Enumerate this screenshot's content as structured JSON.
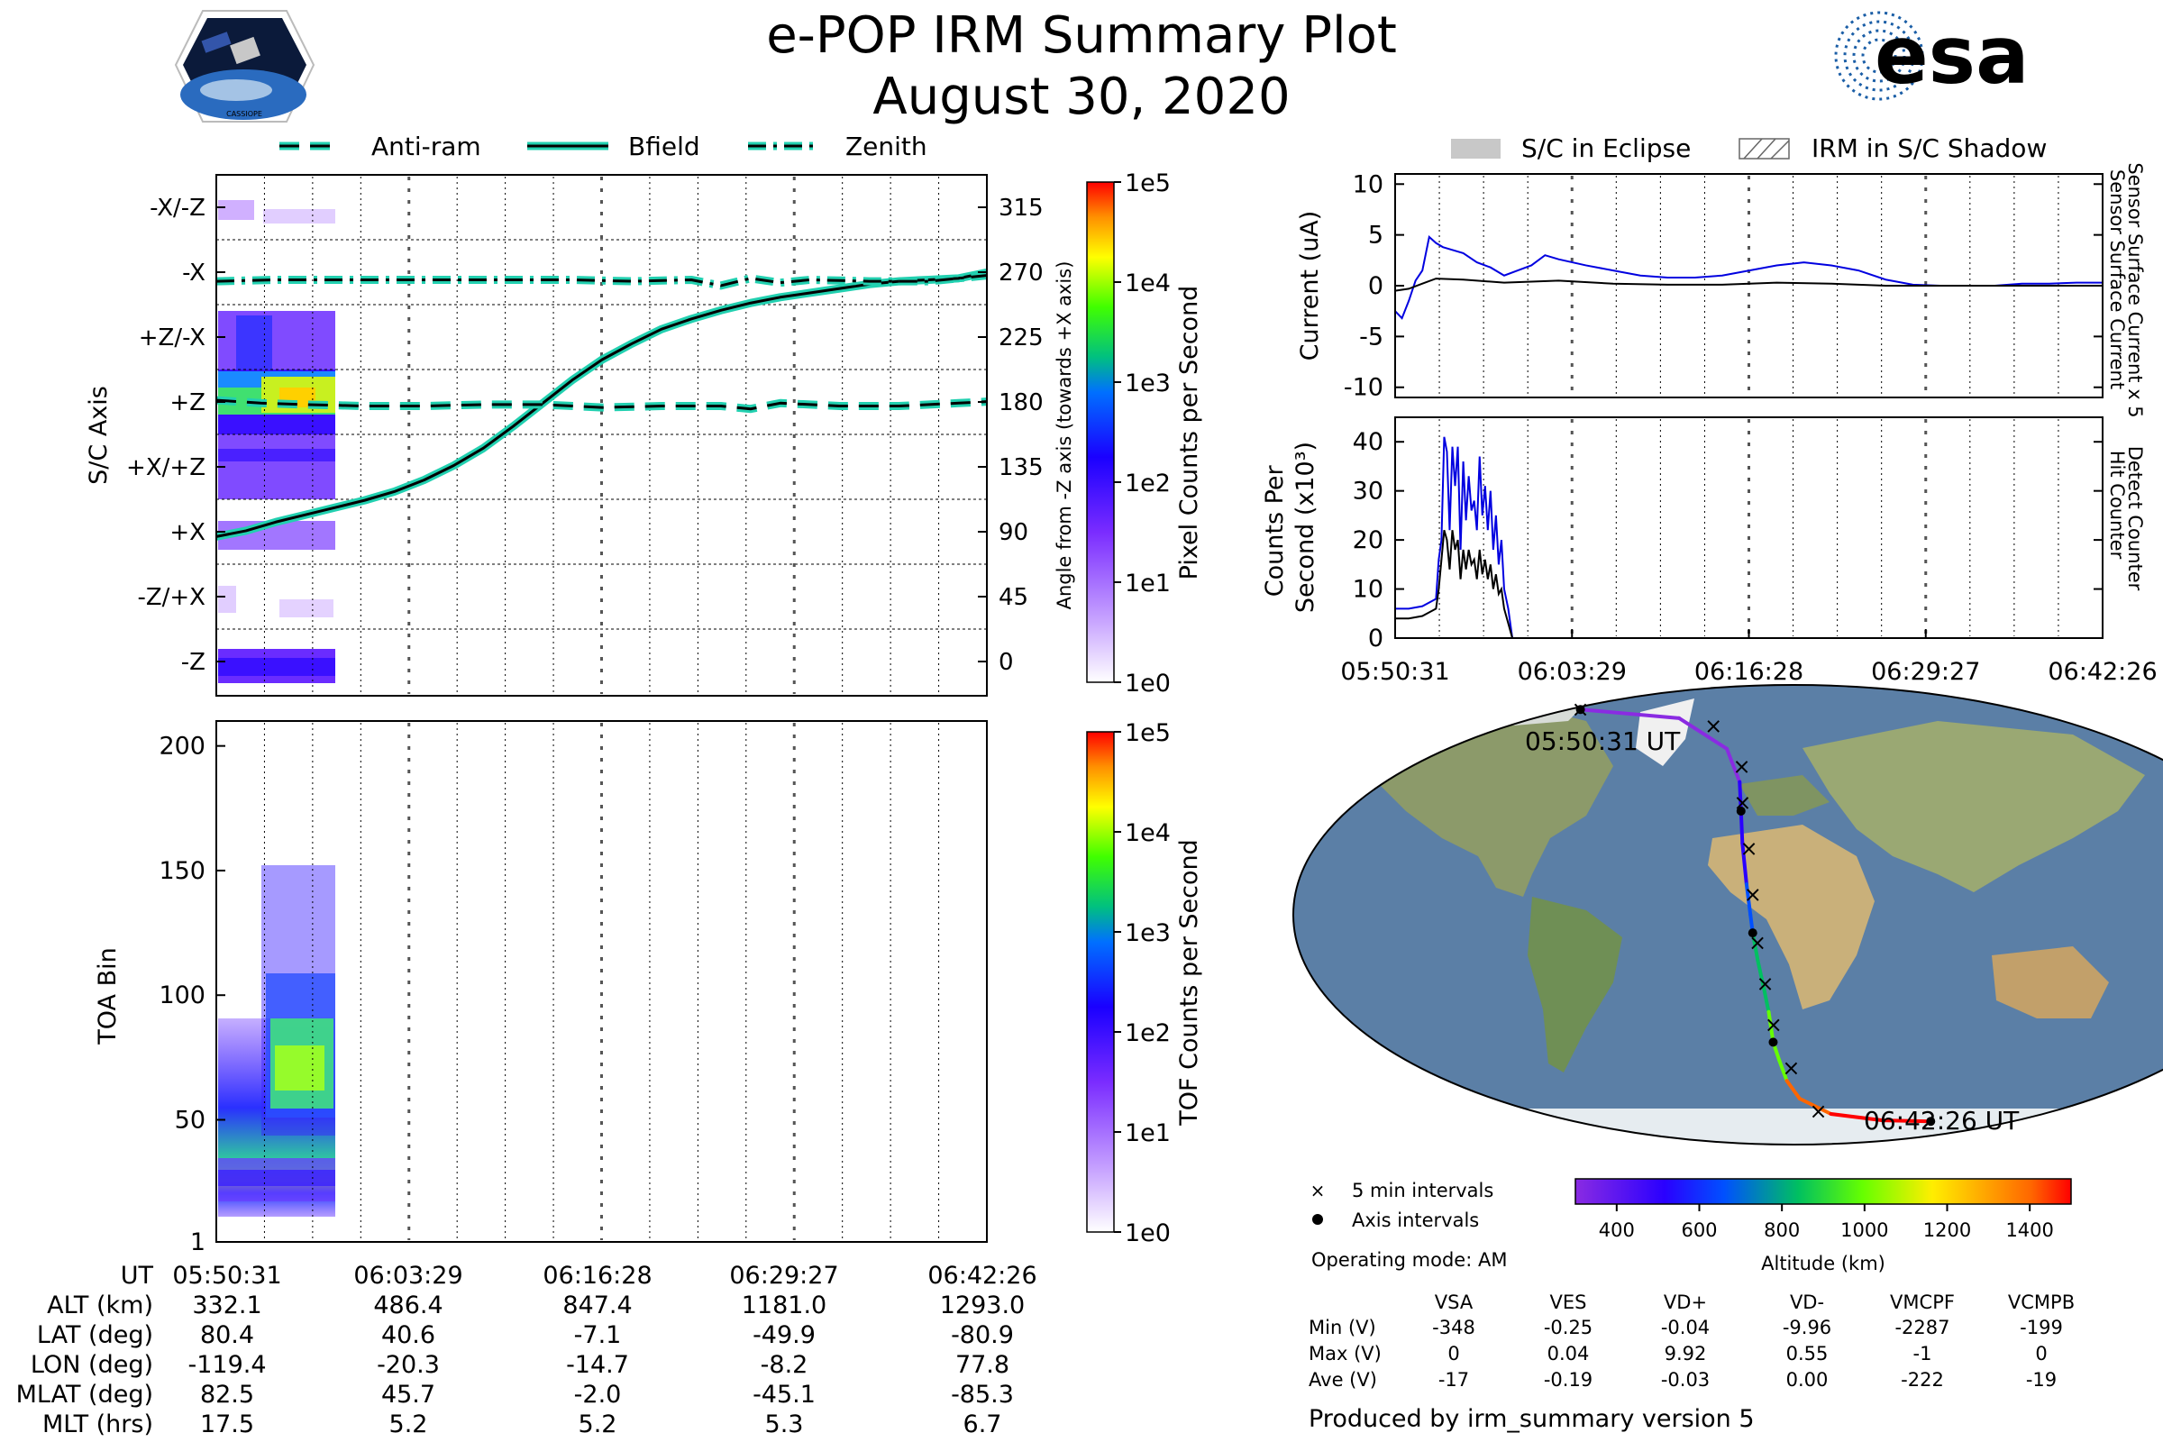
{
  "header": {
    "title": "e-POP IRM Summary Plot",
    "date": "August 30, 2020",
    "left_logo_text": "CASSIOPE",
    "right_logo_text": "esa"
  },
  "legend_left": {
    "antiram": "Anti-ram",
    "bfield": "Bfield",
    "zenith": "Zenith"
  },
  "legend_right": {
    "eclipse": "S/C in Eclipse",
    "shadow": "IRM in S/C Shadow"
  },
  "colors": {
    "line_accent": "#22d0b0",
    "current_blue": "#0000e0",
    "path_colormap": [
      "#8a2be2",
      "#2a00ff",
      "#0050ff",
      "#00c060",
      "#66ff00",
      "#ffee00",
      "#ffaa00",
      "#ff6600",
      "#ff0000"
    ]
  },
  "chart_data": [
    {
      "id": "sc-axis-panel",
      "type": "heatmap",
      "ylabel": "S/C Axis",
      "categories": [
        "-X/-Z",
        "-X",
        "+Z/-X",
        "+Z",
        "+X/+Z",
        "+X",
        "-Z/+X",
        "-Z"
      ],
      "right_axis": {
        "label": "Angle from -Z axis (towards +X axis)",
        "ticks": [
          "315",
          "270",
          "225",
          "180",
          "135",
          "90",
          "45",
          "0"
        ]
      },
      "colorbar": {
        "label": "Pixel Counts per Second",
        "ticks": [
          "1e5",
          "1e4",
          "1e3",
          "1e2",
          "1e1",
          "1e0"
        ]
      },
      "series": [
        {
          "name": "Bfield",
          "x": [
            0,
            2,
            4,
            6,
            8,
            10,
            12,
            14,
            16,
            18,
            20,
            22,
            24,
            26,
            28,
            30,
            32,
            34,
            36,
            38,
            40,
            42,
            44,
            46,
            48,
            50,
            51.9
          ],
          "values": [
            88,
            92,
            98,
            103,
            108,
            113,
            119,
            127,
            137,
            149,
            164,
            180,
            196,
            210,
            221,
            231,
            238,
            244,
            249,
            253,
            256,
            259,
            262,
            264,
            265,
            266,
            270
          ]
        },
        {
          "name": "Anti-ram",
          "x": [
            0,
            3,
            6,
            10,
            14,
            18,
            22,
            26,
            30,
            34,
            36,
            38,
            42,
            46,
            50,
            51.9
          ],
          "values": [
            182,
            180,
            179,
            178,
            178,
            179,
            179,
            177,
            178,
            178,
            176,
            180,
            178,
            178,
            180,
            181
          ]
        },
        {
          "name": "Zenith",
          "x": [
            0,
            4,
            8,
            12,
            16,
            20,
            24,
            28,
            32,
            34,
            36,
            38,
            40,
            44,
            48,
            51.9
          ],
          "values": [
            264,
            265,
            265,
            265,
            265,
            265,
            265,
            264,
            265,
            261,
            266,
            263,
            265,
            264,
            264,
            268
          ]
        }
      ]
    },
    {
      "id": "toa-panel",
      "type": "heatmap",
      "ylabel": "TOA Bin",
      "yticks": [
        "200",
        "150",
        "100",
        "50",
        "1"
      ],
      "ylim": [
        1,
        210
      ],
      "colorbar": {
        "label": "TOF Counts per Second",
        "ticks": [
          "1e5",
          "1e4",
          "1e3",
          "1e2",
          "1e1",
          "1e0"
        ]
      }
    },
    {
      "id": "current-panel",
      "type": "line",
      "ylabel": "Current (uA)",
      "yticks": [
        "10",
        "5",
        "0",
        "-5",
        "-10"
      ],
      "ylim": [
        -11,
        11
      ],
      "right_labels": [
        "Sensor Surface Current x 5",
        "Sensor Surface Current"
      ],
      "series": [
        {
          "name": "Sensor Surface Current x 5",
          "x": [
            0,
            0.5,
            1,
            1.5,
            2,
            2.5,
            3,
            3.5,
            4,
            5,
            6,
            7,
            8,
            9,
            10,
            11,
            12,
            14,
            16,
            18,
            20,
            22,
            24,
            26,
            28,
            30,
            32,
            34,
            36,
            38,
            40,
            42,
            44,
            46,
            48,
            50,
            51.9
          ],
          "values": [
            -2.5,
            -3.2,
            -1.5,
            0.5,
            1.5,
            4.8,
            4.2,
            3.8,
            3.6,
            3.2,
            2.3,
            1.8,
            1.0,
            1.5,
            2.0,
            3.0,
            2.6,
            2.0,
            1.5,
            1.0,
            0.8,
            0.8,
            1.0,
            1.5,
            2.0,
            2.3,
            2.0,
            1.5,
            0.6,
            0.1,
            0.0,
            0.0,
            0.0,
            0.2,
            0.2,
            0.3,
            0.3
          ]
        },
        {
          "name": "Sensor Surface Current",
          "x": [
            0,
            1,
            2,
            3,
            5,
            8,
            12,
            16,
            20,
            24,
            28,
            32,
            36,
            40,
            44,
            48,
            51.9
          ],
          "values": [
            -0.5,
            -0.3,
            0.2,
            0.7,
            0.6,
            0.3,
            0.5,
            0.2,
            0.1,
            0.1,
            0.3,
            0.2,
            0.0,
            0.0,
            0.0,
            0.0,
            0.0
          ]
        }
      ]
    },
    {
      "id": "counts-panel",
      "type": "line",
      "ylabel": "Counts Per Second (x10³)",
      "yticks": [
        "40",
        "30",
        "20",
        "10",
        "0"
      ],
      "ylim": [
        0,
        45
      ],
      "right_labels": [
        "Detect Counter",
        "Hit Counter"
      ],
      "xticks": [
        "05:50:31",
        "06:03:29",
        "06:16:28",
        "06:29:27",
        "06:42:26"
      ],
      "series": [
        {
          "name": "Detect Counter",
          "x": [
            0,
            1,
            2,
            3,
            3.2,
            3.4,
            3.6,
            3.8,
            4.0,
            4.2,
            4.4,
            4.6,
            4.8,
            5.0,
            5.2,
            5.4,
            5.6,
            5.8,
            6.0,
            6.2,
            6.4,
            6.6,
            6.8,
            7.0,
            7.2,
            7.4,
            7.6,
            7.8,
            8.0,
            8.3,
            8.6,
            9,
            20,
            40,
            51.9
          ],
          "values": [
            6,
            6,
            6.5,
            8,
            16,
            20,
            41,
            38,
            22,
            39,
            31,
            39,
            18,
            36,
            24,
            33,
            26,
            28,
            22,
            37,
            25,
            31,
            22,
            30,
            18,
            25,
            15,
            20,
            10,
            6,
            0,
            0,
            0,
            0,
            0
          ]
        },
        {
          "name": "Hit Counter",
          "x": [
            0,
            1,
            2,
            3,
            3.2,
            3.4,
            3.6,
            3.8,
            4.0,
            4.2,
            4.4,
            4.6,
            4.8,
            5.0,
            5.2,
            5.4,
            5.6,
            5.8,
            6.0,
            6.2,
            6.4,
            6.6,
            6.8,
            7.0,
            7.2,
            7.4,
            7.6,
            7.8,
            8.0,
            8.3,
            8.6,
            9,
            20,
            40,
            51.9
          ],
          "values": [
            4,
            4,
            4.5,
            6,
            10,
            16,
            22,
            20,
            14,
            22,
            18,
            20,
            12,
            18,
            14,
            18,
            15,
            16,
            12,
            18,
            13,
            16,
            12,
            15,
            10,
            13,
            9,
            10,
            6,
            3,
            0,
            0,
            0,
            0,
            0
          ]
        }
      ]
    },
    {
      "id": "ground-track-map",
      "type": "scatter",
      "lon": [
        -119.4,
        -60,
        -30,
        -22,
        -20.3,
        -19,
        -17,
        -15.5,
        -14.7,
        -13,
        -11,
        -9.5,
        -8.2,
        -6,
        -3,
        3,
        20,
        50,
        77.8
      ],
      "lat": [
        80.4,
        77,
        65,
        52,
        40.6,
        28,
        12,
        0,
        -7.1,
        -18,
        -29,
        -38,
        -49.9,
        -57,
        -65,
        -72,
        -78,
        -80.5,
        -80.9
      ],
      "five_min_marks_lon": [
        -119.4,
        -40,
        -22,
        -20,
        -16.5,
        -14.7,
        -13,
        -10.5,
        -7.8,
        -1,
        13
      ],
      "five_min_marks_lat": [
        80.4,
        74,
        58,
        44,
        26,
        8,
        -11,
        -27,
        -43,
        -60,
        -77
      ],
      "axis_marks_lon": [
        -119.4,
        -20.3,
        -14.7,
        -8.2,
        77.8
      ],
      "axis_marks_lat": [
        80.4,
        40.6,
        -7.1,
        -49.9,
        -80.9
      ],
      "start_label": "05:50:31 UT",
      "end_label": "06:42:26 UT",
      "legend": {
        "five_min": "5 min intervals",
        "axis": "Axis intervals"
      },
      "altitude_colorbar": {
        "label": "Altitude (km)",
        "ticks": [
          "400",
          "600",
          "800",
          "1000",
          "1200",
          "1400"
        ],
        "range": [
          300,
          1500
        ]
      }
    }
  ],
  "left_table": {
    "row_labels": [
      "UT",
      "ALT (km)",
      "LAT (deg)",
      "LON (deg)",
      "MLAT (deg)",
      "MLT (hrs)"
    ],
    "columns": [
      [
        "05:50:31",
        "332.1",
        "80.4",
        "-119.4",
        "82.5",
        "17.5"
      ],
      [
        "06:03:29",
        "486.4",
        "40.6",
        "-20.3",
        "45.7",
        "5.2"
      ],
      [
        "06:16:28",
        "847.4",
        "-7.1",
        "-14.7",
        "-2.0",
        "5.2"
      ],
      [
        "06:29:27",
        "1181.0",
        "-49.9",
        "-8.2",
        "-45.1",
        "5.3"
      ],
      [
        "06:42:26",
        "1293.0",
        "-80.9",
        "77.8",
        "-85.3",
        "6.7"
      ]
    ]
  },
  "operating_mode": "Operating mode: AM",
  "voltage_table": {
    "headers": [
      "VSA",
      "VES",
      "VD+",
      "VD-",
      "VMCPF",
      "VCMPB"
    ],
    "rows": [
      {
        "label": "Min (V)",
        "values": [
          "-348",
          "-0.25",
          "-0.04",
          "-9.96",
          "-2287",
          "-199"
        ]
      },
      {
        "label": "Max (V)",
        "values": [
          "0",
          "0.04",
          "9.92",
          "0.55",
          "-1",
          "0"
        ]
      },
      {
        "label": "Ave (V)",
        "values": [
          "-17",
          "-0.19",
          "-0.03",
          "0.00",
          "-222",
          "-19"
        ]
      }
    ]
  },
  "footer": "Produced by irm_summary version 5"
}
